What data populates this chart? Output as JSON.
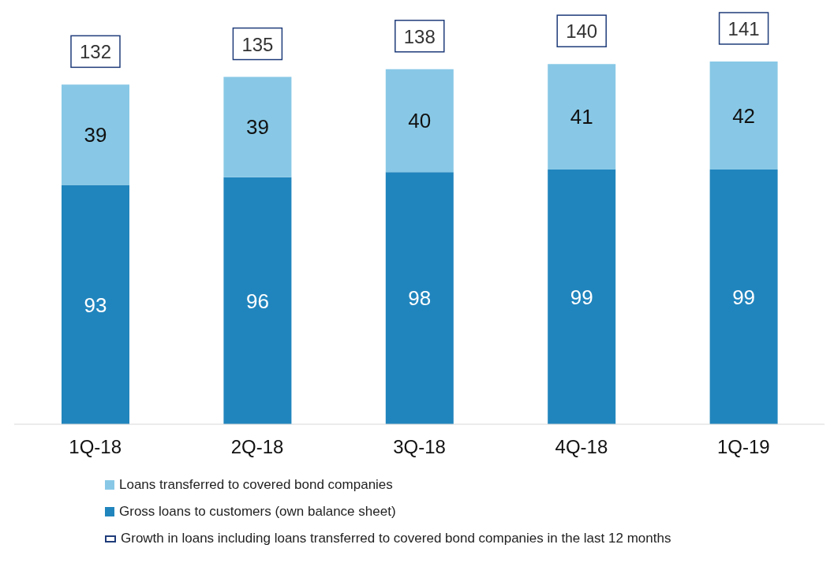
{
  "chart_data": {
    "type": "bar",
    "stacked": true,
    "categories": [
      "1Q-18",
      "2Q-18",
      "3Q-18",
      "4Q-18",
      "1Q-19"
    ],
    "series": [
      {
        "name": "Gross loans to customers (own balance sheet)",
        "color": "#2185bd",
        "values": [
          93,
          96,
          98,
          99,
          99
        ]
      },
      {
        "name": "Loans transferred to covered bond companies",
        "color": "#88c8e6",
        "values": [
          39,
          39,
          40,
          41,
          42
        ]
      }
    ],
    "data_labels": true,
    "totals": [
      "132",
      "135",
      "138",
      "140",
      "141"
    ],
    "legend": "bottom",
    "annotations": [
      "Growth in loans including loans transferred to covered bond companies in the last 12 months"
    ]
  }
}
